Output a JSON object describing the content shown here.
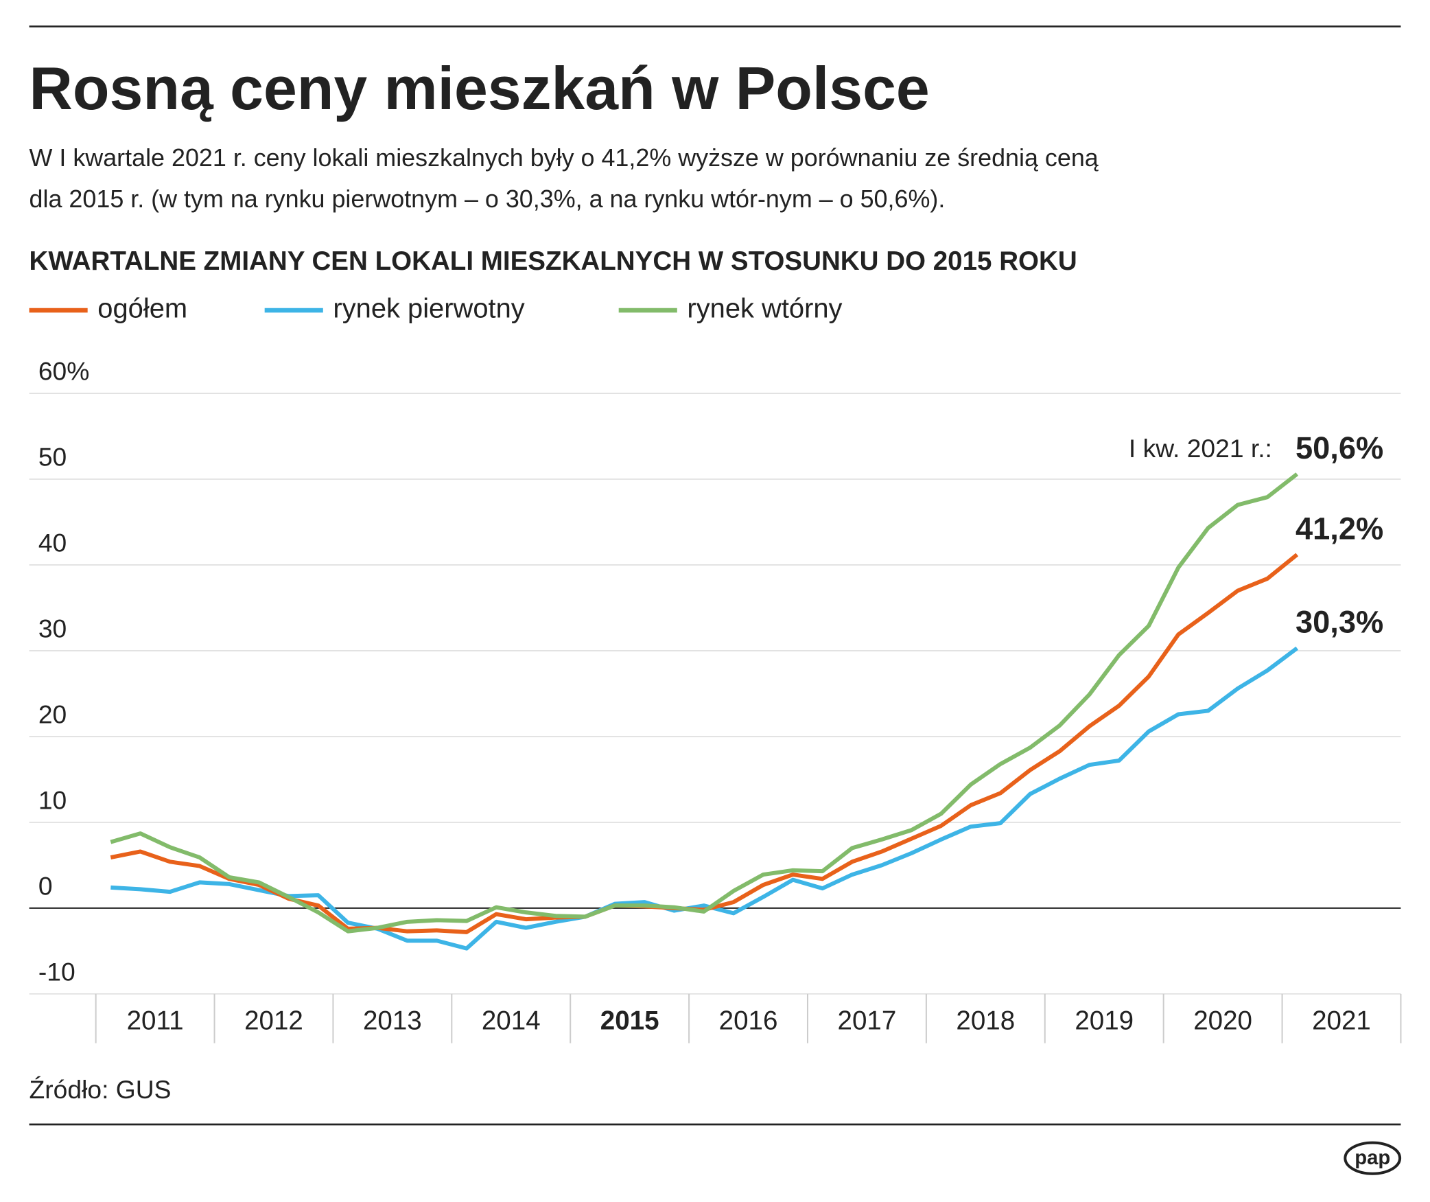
{
  "chart_data": {
    "type": "line",
    "title": "Rosną ceny mieszkań w Polsce",
    "subtitle": [
      "W I kwartale 2021 r. ceny lokali mieszkalnych były o 41,2% wyższe w porównaniu ze średnią ceną",
      "dla 2015 r. (w tym na rynku pierwotnym – o 30,3%, a na rynku wtór-nym – o 50,6%)."
    ],
    "chart_title": "KWARTALNE ZMIANY CEN LOKALI MIESZKALNYCH W STOSUNKU DO 2015 ROKU",
    "annotation": "I kw. 2021 r.:",
    "source": "Źródło: GUS",
    "logo": "pap",
    "x": [
      2011.125,
      2011.375,
      2011.625,
      2011.875,
      2012.125,
      2012.375,
      2012.625,
      2012.875,
      2013.125,
      2013.375,
      2013.625,
      2013.875,
      2014.125,
      2014.375,
      2014.625,
      2014.875,
      2015.125,
      2015.375,
      2015.625,
      2015.875,
      2016.125,
      2016.375,
      2016.625,
      2016.875,
      2017.125,
      2017.375,
      2017.625,
      2017.875,
      2018.125,
      2018.375,
      2018.625,
      2018.875,
      2019.125,
      2019.375,
      2019.625,
      2019.875,
      2020.125,
      2020.375,
      2020.625,
      2020.875,
      2021.125
    ],
    "xlim": [
      2011,
      2022
    ],
    "xticks": [
      2011,
      2012,
      2013,
      2014,
      2015,
      2016,
      2017,
      2018,
      2019,
      2020,
      2021
    ],
    "highlight_xtick": 2015,
    "ylim": [
      -10,
      60
    ],
    "yticks": [
      -10,
      0,
      10,
      20,
      30,
      40,
      50,
      {
        "value": 60,
        "label": "60%"
      }
    ],
    "grid": true,
    "series": [
      {
        "name": "ogółem",
        "color": "#e8611a",
        "end_label": "41,2%",
        "values": [
          5.9,
          6.6,
          5.4,
          4.9,
          3.4,
          2.7,
          1.1,
          0.3,
          -2.4,
          -2.3,
          -2.7,
          -2.6,
          -2.8,
          -0.7,
          -1.3,
          -1.1,
          -1.0,
          0.3,
          0.2,
          0,
          -0.2,
          0.7,
          2.7,
          3.9,
          3.4,
          5.4,
          6.6,
          8.1,
          9.6,
          12.0,
          13.4,
          16.1,
          18.3,
          21.2,
          23.6,
          27.0,
          31.9,
          34.4,
          37.0,
          38.4,
          41.2
        ]
      },
      {
        "name": "rynek pierwotny",
        "color": "#3db4e6",
        "end_label": "30,3%",
        "values": [
          2.4,
          2.2,
          1.9,
          3.0,
          2.8,
          2.1,
          1.4,
          1.5,
          -1.7,
          -2.4,
          -3.8,
          -3.8,
          -4.7,
          -1.6,
          -2.3,
          -1.6,
          -1.0,
          0.5,
          0.7,
          -0.3,
          0.3,
          -0.6,
          1.3,
          3.3,
          2.3,
          3.9,
          5.0,
          6.4,
          8.0,
          9.5,
          9.9,
          13.3,
          15.1,
          16.7,
          17.2,
          20.6,
          22.6,
          23.0,
          25.6,
          27.7,
          30.3
        ]
      },
      {
        "name": "rynek wtórny",
        "color": "#82bb6a",
        "end_label": "50,6%",
        "values": [
          7.7,
          8.7,
          7.1,
          5.9,
          3.6,
          3.0,
          1.3,
          -0.5,
          -2.7,
          -2.3,
          -1.6,
          -1.4,
          -1.5,
          0.1,
          -0.5,
          -0.9,
          -1.0,
          0.3,
          0.3,
          0.1,
          -0.4,
          2.0,
          3.9,
          4.4,
          4.3,
          7.0,
          8.0,
          9.1,
          11.0,
          14.4,
          16.8,
          18.7,
          21.3,
          24.9,
          29.5,
          32.9,
          39.7,
          44.3,
          47.0,
          47.9,
          50.6
        ]
      }
    ]
  }
}
